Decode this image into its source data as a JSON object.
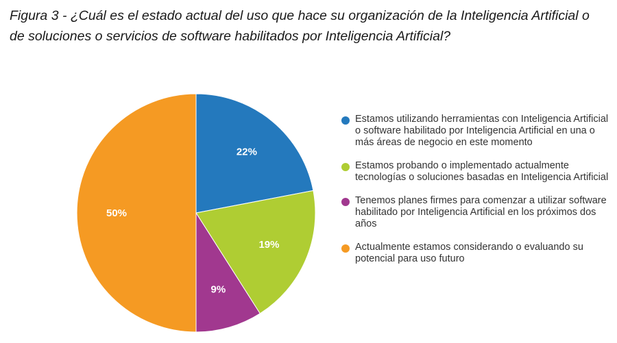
{
  "title": "Figura 3 - ¿Cuál es el estado actual del uso que hace su organización de la Inteligencia Artificial o de soluciones o servicios de software habilitados por Inteligencia Artificial?",
  "chart_data": {
    "type": "pie",
    "title": "Figura 3 - ¿Cuál es el estado actual del uso que hace su organización de la Inteligencia Artificial o de soluciones o servicios de software habilitados por Inteligencia Artificial?",
    "unit": "%",
    "start": "12 o'clock, clockwise",
    "legend_position": "right",
    "slices": [
      {
        "label": "Estamos utilizando herramientas con Inteligencia Artificial o software habilitado por Inteligencia Artificial en una o más áreas de negocio en este momento",
        "value": 22,
        "display": "22%",
        "color": "#2479bd"
      },
      {
        "label": "Estamos probando o implementado actualmente tecnologías o soluciones basadas en Inteligencia Artificial",
        "value": 19,
        "display": "19%",
        "color": "#afcd33"
      },
      {
        "label": "Tenemos planes firmes para comenzar a utilizar software habilitado por Inteligencia Artificial en los próximos dos años",
        "value": 9,
        "display": "9%",
        "color": "#a1388f"
      },
      {
        "label": "Actualmente estamos considerando o evaluando su potencial para uso futuro",
        "value": 50,
        "display": "50%",
        "color": "#f59a23"
      }
    ]
  }
}
